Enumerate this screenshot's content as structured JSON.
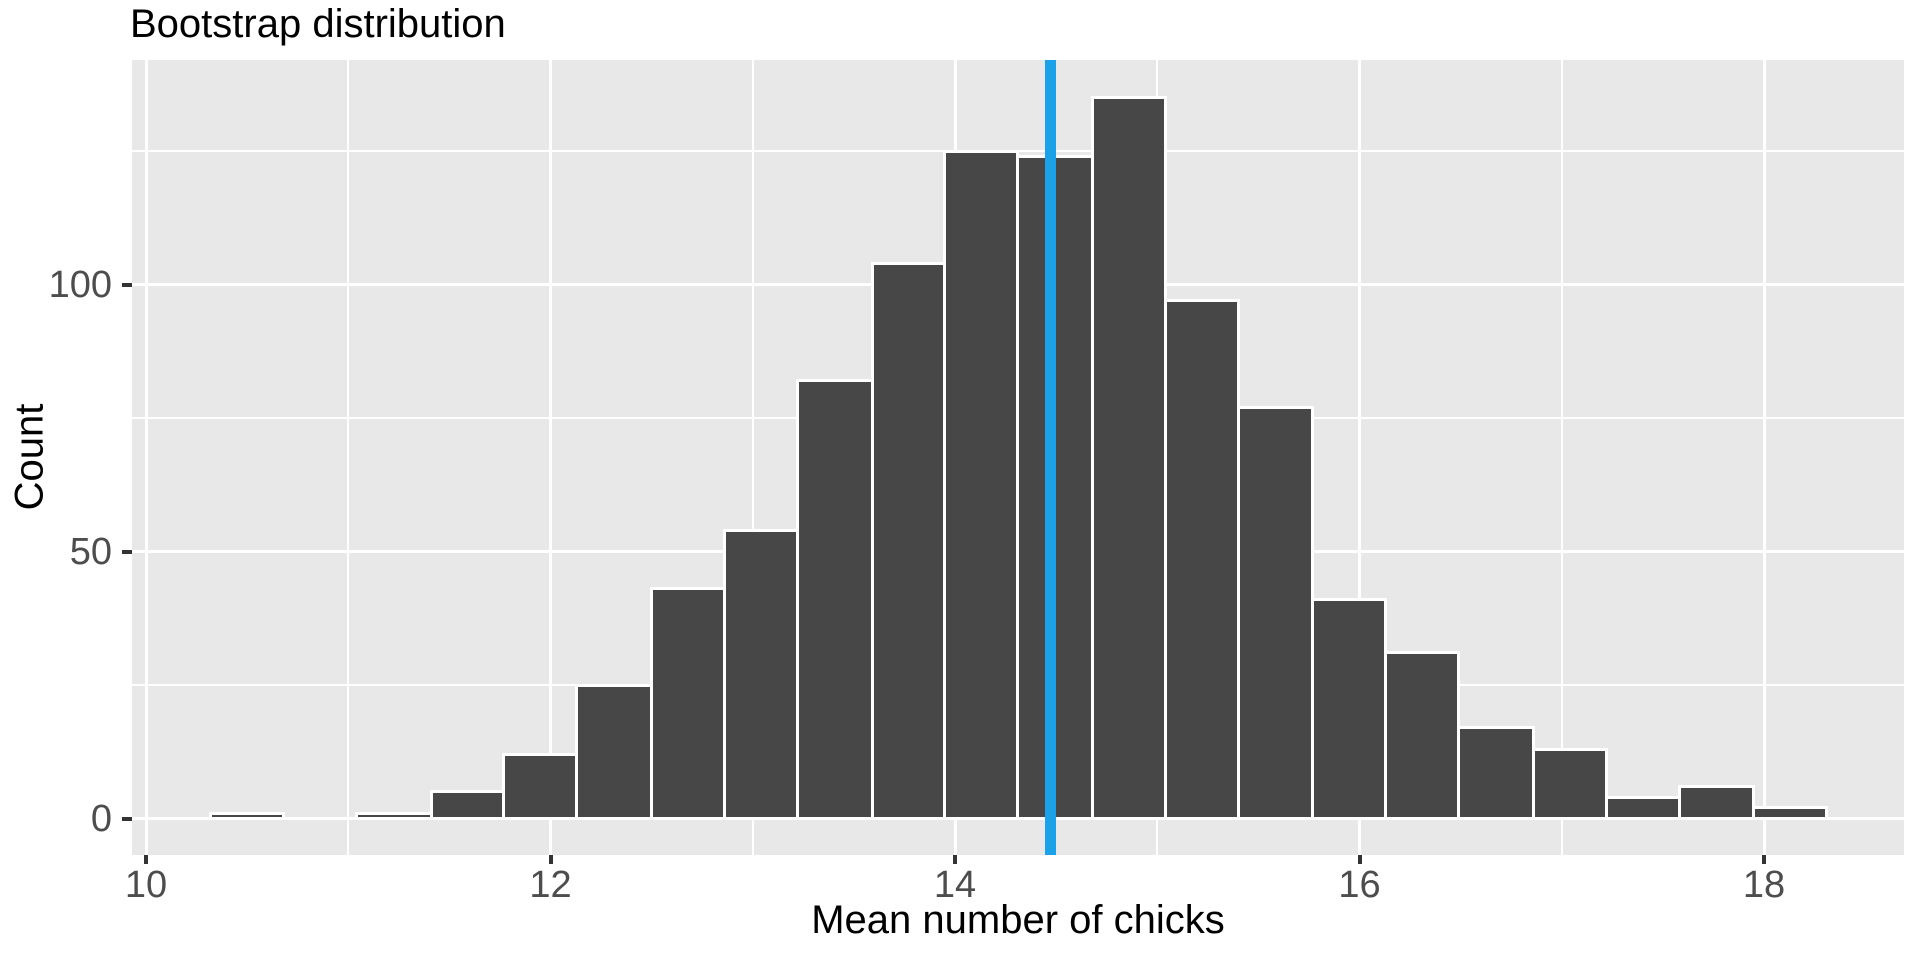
{
  "title": "Bootstrap distribution",
  "x_axis": {
    "title": "Mean number of chicks",
    "tick_values": [
      10,
      12,
      14,
      16,
      18
    ],
    "tick_labels": [
      "10",
      "12",
      "14",
      "16",
      "18"
    ],
    "minor_tick_values": [
      11,
      13,
      15,
      17
    ]
  },
  "y_axis": {
    "title": "Count",
    "tick_values": [
      0,
      50,
      100
    ],
    "tick_labels": [
      "0",
      "50",
      "100"
    ],
    "minor_tick_values": [
      25,
      75,
      125
    ]
  },
  "chart_data": {
    "type": "bar",
    "subtype": "histogram",
    "title": "Bootstrap distribution",
    "xlabel": "Mean number of chicks",
    "ylabel": "Count",
    "bin_edges": [
      10.32,
      10.68,
      11.04,
      11.41,
      11.77,
      12.13,
      12.5,
      12.86,
      13.22,
      13.59,
      13.95,
      14.31,
      14.68,
      15.04,
      15.4,
      15.77,
      16.13,
      16.49,
      16.86,
      17.22,
      17.58,
      17.95,
      18.31
    ],
    "counts": [
      1,
      0,
      1,
      5,
      12,
      25,
      43,
      54,
      82,
      104,
      125,
      124,
      135,
      97,
      77,
      41,
      31,
      17,
      13,
      4,
      6,
      2
    ],
    "vline_x": 14.47,
    "xlim": [
      9.93,
      18.7
    ],
    "ylim": [
      -7,
      142
    ],
    "grid": "white major and minor gridlines on gray panel",
    "legend": "none",
    "colors": {
      "bar_fill": "#474747",
      "bar_outline": "#FFFFFF",
      "panel_background": "#E8E8E8",
      "gridline": "#FFFFFF",
      "vline": "#1AA1E8",
      "tick_text": "#4D4D4D",
      "title_text": "#000000",
      "tick_mark": "#333333"
    }
  }
}
